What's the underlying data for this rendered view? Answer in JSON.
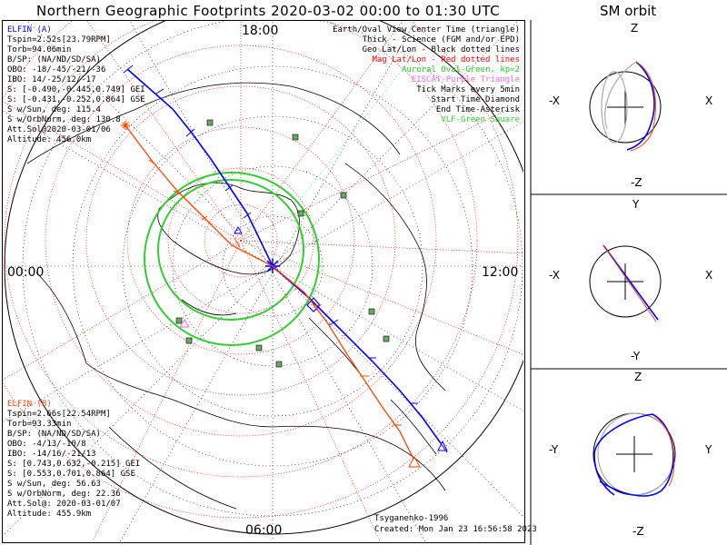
{
  "title": "Northern Geographic Footprints 2020-03-02 00:00 to 01:30 UTC",
  "sm_title": "SM orbit",
  "hours": {
    "top": "18:00",
    "left": "00:00",
    "right": "12:00",
    "bottom": "06:00"
  },
  "elfin_a": {
    "header": "ELFIN (A)",
    "lines": [
      "Tspin=2.52s[23.79RPM]",
      "Torb=94.06min",
      "B/SP: (NA/ND/SD/SA)",
      "OBO: -18/-45/-21/-36",
      "IBO: 14/-25/12/-17",
      "S: [-0.490,-0.445,0.749] GEI",
      "S: [-0.431,-0.252,0.864] GSE",
      "S w/Sun, deg: 115.4",
      "S w/OrbNorm, deg: 130.8",
      "Att.Sol@2020-03-01/06",
      "Altitude: 456.0km"
    ],
    "color": "#0000ff"
  },
  "elfin_b": {
    "header": "ELFIN (B)",
    "lines": [
      "Tspin=2.66s[22.54RPM]",
      "Torb=93.33min",
      "B/SP: (NA/ND/SD/SA)",
      "OBO: -4/13/-10/8",
      "IBO: -14/16/-21/13",
      "S: [0.743,0.632,-0.215] GEI",
      "S: [0.553,0.701,0.864] GSE",
      "S w/Sun, deg: 56.63",
      "S w/OrbNorm, deg: 22.36",
      "Att.Sol@: 2020-03-01/07",
      "Altitude: 455.9km"
    ],
    "color": "#ff4500"
  },
  "legend": [
    {
      "text": "Earth/Oval View Center Time (triangle)",
      "color": "#000000"
    },
    {
      "text": "Thick - Science (FGM and/or EPD)",
      "color": "#000000"
    },
    {
      "text": "Geo Lat/Lon - Black dotted lines",
      "color": "#000000"
    },
    {
      "text": "Mag Lat/Lon - Red dotted lines",
      "color": "#ff0000"
    },
    {
      "text": "Auroral Oval-Green, kp=2",
      "color": "#22cc22"
    },
    {
      "text": "EISCAT-Purple Triangle",
      "color": "#ff66cc"
    },
    {
      "text": "Tick Marks every 5min",
      "color": "#000000"
    },
    {
      "text": "Start Time-Diamond",
      "color": "#000000"
    },
    {
      "text": "End Time-Asterisk",
      "color": "#000000"
    },
    {
      "text": "VLF-Green Square",
      "color": "#33cc33"
    }
  ],
  "credits": {
    "model": "Tsyganenko-1996",
    "created": "Created: Mon Jan 23 16:56:58 2023"
  },
  "sm_panels": [
    {
      "top": "Z",
      "bottom": "-Z",
      "left": "-X",
      "right": "X"
    },
    {
      "top": "Y",
      "bottom": "-Y",
      "left": "-X",
      "right": "X"
    },
    {
      "top": "Z",
      "bottom": "-Z",
      "left": "-Y",
      "right": "Y"
    }
  ]
}
